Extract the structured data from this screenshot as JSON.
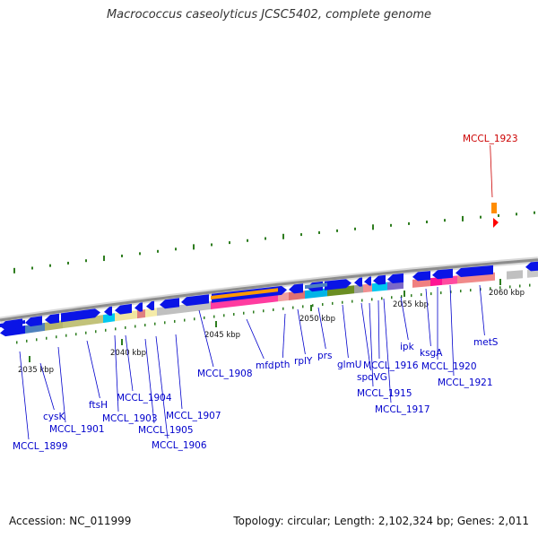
{
  "title": "Macrococcus caseolyticus JCSC5402, complete genome",
  "footer": {
    "accession": "Accession: NC_011999",
    "topology": "Topology: circular; Length: 2,102,324 bp; Genes: 2,011"
  },
  "colors": {
    "forward_gene": "#0a14e6",
    "highlight_gene": "#ff8c00",
    "label": "#0000cc",
    "highlight_label": "#cc0000",
    "tick": "#2e7d1f",
    "backbone": "#8c8c8c"
  },
  "kbp_labels": [
    "2035 kbp",
    "2040 kbp",
    "2045 kbp",
    "2050 kbp",
    "2055 kbp",
    "2060 kbp"
  ],
  "gene_labels": [
    {
      "text": "MCCL_1899"
    },
    {
      "text": "cysK"
    },
    {
      "text": "MCCL_1901"
    },
    {
      "text": "ftsH"
    },
    {
      "text": "MCCL_1903"
    },
    {
      "text": "MCCL_1904"
    },
    {
      "text": "MCCL_1905"
    },
    {
      "text": "MCCL_1906"
    },
    {
      "text": "MCCL_1907"
    },
    {
      "text": "MCCL_1908"
    },
    {
      "text": "mfd"
    },
    {
      "text": "pth"
    },
    {
      "text": "rplY"
    },
    {
      "text": "prs"
    },
    {
      "text": "glmU"
    },
    {
      "text": "spoVG"
    },
    {
      "text": "MCCL_1915"
    },
    {
      "text": "MCCL_1916"
    },
    {
      "text": "MCCL_1917"
    },
    {
      "text": "ipk"
    },
    {
      "text": "ksgA"
    },
    {
      "text": "MCCL_1920"
    },
    {
      "text": "MCCL_1921"
    },
    {
      "text": "metS"
    },
    {
      "text": "MCCL_1923",
      "highlight": true
    }
  ]
}
